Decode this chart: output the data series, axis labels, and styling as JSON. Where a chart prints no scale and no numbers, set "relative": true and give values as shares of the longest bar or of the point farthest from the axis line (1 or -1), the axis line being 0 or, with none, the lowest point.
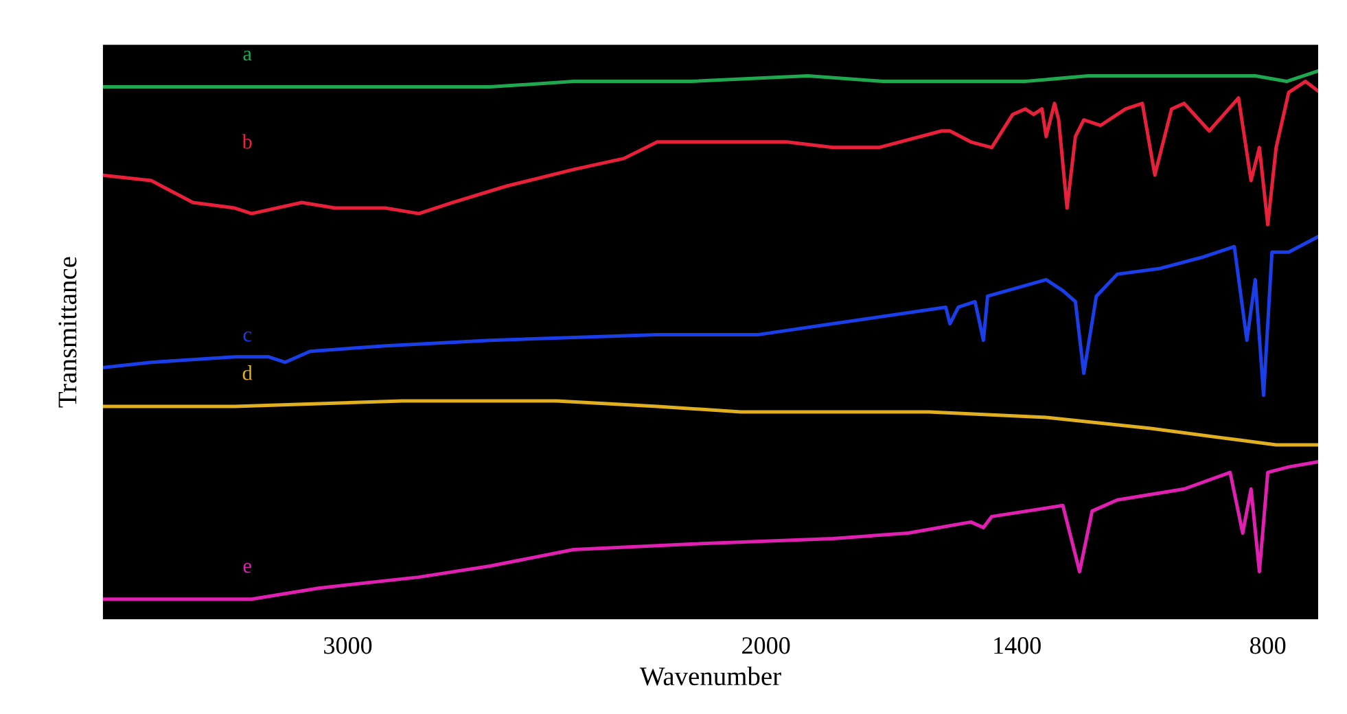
{
  "chart_data": {
    "type": "line",
    "relative": true,
    "xlabel": "Wavenumber",
    "ylabel": "Transmittance",
    "xlim": [
      3590,
      675
    ],
    "xticks": [
      3000,
      2000,
      1400,
      800
    ],
    "tick_labels": "x",
    "grid": false,
    "marker": "none",
    "line_style": "solid",
    "series": [
      {
        "name": "a",
        "color": "#1fa84f",
        "x": [
          3590,
          3070,
          2660,
          2460,
          2180,
          1900,
          1720,
          1580,
          1380,
          1230,
          980,
          830,
          755,
          675
        ],
        "values": [
          0.97,
          0.97,
          0.97,
          0.98,
          0.98,
          0.99,
          0.98,
          0.98,
          0.98,
          0.99,
          0.99,
          0.99,
          0.98,
          1.0
        ]
      },
      {
        "name": "b",
        "color": "#e8203a",
        "x": [
          3590,
          3470,
          3370,
          3270,
          3230,
          3110,
          3030,
          2910,
          2830,
          2750,
          2620,
          2460,
          2340,
          2260,
          2200,
          1950,
          1840,
          1730,
          1580,
          1560,
          1510,
          1460,
          1410,
          1380,
          1360,
          1340,
          1330,
          1310,
          1300,
          1280,
          1260,
          1240,
          1200,
          1140,
          1100,
          1070,
          1030,
          1000,
          940,
          870,
          840,
          820,
          800,
          780,
          750,
          710,
          675
        ],
        "values": [
          0.81,
          0.8,
          0.76,
          0.75,
          0.74,
          0.76,
          0.75,
          0.75,
          0.74,
          0.76,
          0.79,
          0.82,
          0.84,
          0.87,
          0.87,
          0.87,
          0.86,
          0.86,
          0.89,
          0.89,
          0.87,
          0.86,
          0.92,
          0.93,
          0.92,
          0.93,
          0.88,
          0.94,
          0.91,
          0.75,
          0.88,
          0.91,
          0.9,
          0.93,
          0.94,
          0.81,
          0.93,
          0.94,
          0.89,
          0.95,
          0.8,
          0.86,
          0.72,
          0.86,
          0.96,
          0.98,
          0.96
        ]
      },
      {
        "name": "c",
        "color": "#1a3ee8",
        "x": [
          3590,
          3470,
          3270,
          3190,
          3150,
          3090,
          2910,
          2660,
          2260,
          2020,
          1840,
          1570,
          1560,
          1540,
          1500,
          1480,
          1470,
          1330,
          1290,
          1260,
          1240,
          1210,
          1160,
          1060,
          960,
          880,
          850,
          830,
          810,
          790,
          750,
          675
        ],
        "values": [
          0.46,
          0.47,
          0.48,
          0.48,
          0.47,
          0.49,
          0.5,
          0.51,
          0.52,
          0.52,
          0.54,
          0.57,
          0.54,
          0.57,
          0.58,
          0.51,
          0.59,
          0.62,
          0.6,
          0.58,
          0.45,
          0.59,
          0.63,
          0.64,
          0.66,
          0.68,
          0.51,
          0.62,
          0.41,
          0.67,
          0.67,
          0.7
        ]
      },
      {
        "name": "d",
        "color": "#e0b020",
        "x": [
          3590,
          3270,
          2870,
          2500,
          2260,
          2060,
          1840,
          1610,
          1330,
          1080,
          880,
          780,
          675
        ],
        "values": [
          0.39,
          0.39,
          0.4,
          0.4,
          0.39,
          0.38,
          0.38,
          0.38,
          0.37,
          0.35,
          0.33,
          0.32,
          0.32
        ]
      },
      {
        "name": "e",
        "color": "#e020b0",
        "x": [
          3590,
          3310,
          3230,
          3070,
          2830,
          2660,
          2460,
          2180,
          1840,
          1660,
          1510,
          1480,
          1460,
          1290,
          1250,
          1220,
          1160,
          1000,
          890,
          860,
          840,
          820,
          800,
          750,
          675
        ],
        "values": [
          0.04,
          0.04,
          0.04,
          0.06,
          0.08,
          0.1,
          0.13,
          0.14,
          0.15,
          0.16,
          0.18,
          0.17,
          0.19,
          0.21,
          0.09,
          0.2,
          0.22,
          0.24,
          0.27,
          0.16,
          0.24,
          0.09,
          0.27,
          0.28,
          0.29
        ]
      }
    ]
  }
}
